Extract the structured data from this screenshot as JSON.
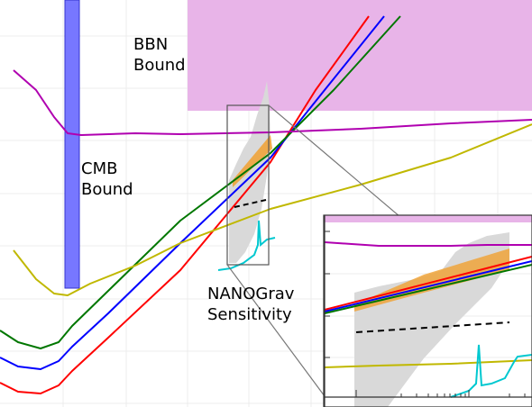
{
  "chart_data": {
    "type": "line",
    "title": "",
    "xlabel": "",
    "ylabel": "",
    "grid": true,
    "annotations": {
      "bbn": [
        "BBN",
        "Bound"
      ],
      "cmb": [
        "CMB",
        "Bound"
      ],
      "nanograv": [
        "NANOGrav",
        "Sensitivity"
      ]
    },
    "colors": {
      "bbn_region": "#e8b4e8",
      "cmb_band": "#7777ff",
      "red": "#ff0000",
      "blue": "#0000ff",
      "green": "#007700",
      "purple": "#b000b0",
      "yellow": "#c0b800",
      "cyan": "#00c8d0",
      "orange": "#f0a030",
      "sensitivity_gray": "#d9d9d9",
      "dashed": "#000000"
    },
    "series": [
      {
        "color": "red",
        "x": [
          0,
          20,
          45,
          65,
          80,
          120,
          200,
          300,
          350,
          409
        ],
        "y": [
          425,
          435,
          437,
          428,
          412,
          375,
          300,
          180,
          100,
          18
        ]
      },
      {
        "color": "blue",
        "x": [
          0,
          20,
          45,
          65,
          80,
          120,
          200,
          300,
          360,
          426
        ],
        "y": [
          397,
          407,
          410,
          401,
          385,
          348,
          270,
          175,
          100,
          18
        ]
      },
      {
        "color": "green",
        "x": [
          0,
          20,
          45,
          65,
          80,
          120,
          200,
          300,
          370,
          444
        ],
        "y": [
          367,
          380,
          387,
          380,
          362,
          323,
          245,
          170,
          100,
          18
        ]
      },
      {
        "color": "purple",
        "x": [
          15,
          40,
          60,
          75,
          90,
          150,
          200,
          250,
          300,
          400,
          500,
          590
        ],
        "y": [
          78,
          100,
          130,
          148,
          150,
          148,
          149,
          148,
          147,
          143,
          137,
          133
        ]
      },
      {
        "color": "yellow",
        "x": [
          15,
          40,
          60,
          75,
          100,
          150,
          200,
          300,
          400,
          500,
          590
        ],
        "y": [
          278,
          310,
          326,
          328,
          315,
          295,
          270,
          232,
          205,
          175,
          138
        ]
      }
    ],
    "inset": {
      "gray_envelope": true,
      "purple_y": 272,
      "yellow_y": 408,
      "dashed": {
        "x": [
          395,
          565
        ],
        "y": [
          369,
          358
        ]
      }
    }
  }
}
